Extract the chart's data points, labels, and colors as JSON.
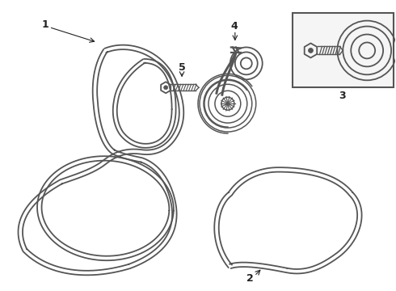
{
  "background_color": "#ffffff",
  "line_color": "#555555",
  "line_width": 1.3,
  "label_fontsize": 9,
  "label_fontweight": "bold",
  "fig_w": 4.9,
  "fig_h": 3.6,
  "dpi": 100
}
